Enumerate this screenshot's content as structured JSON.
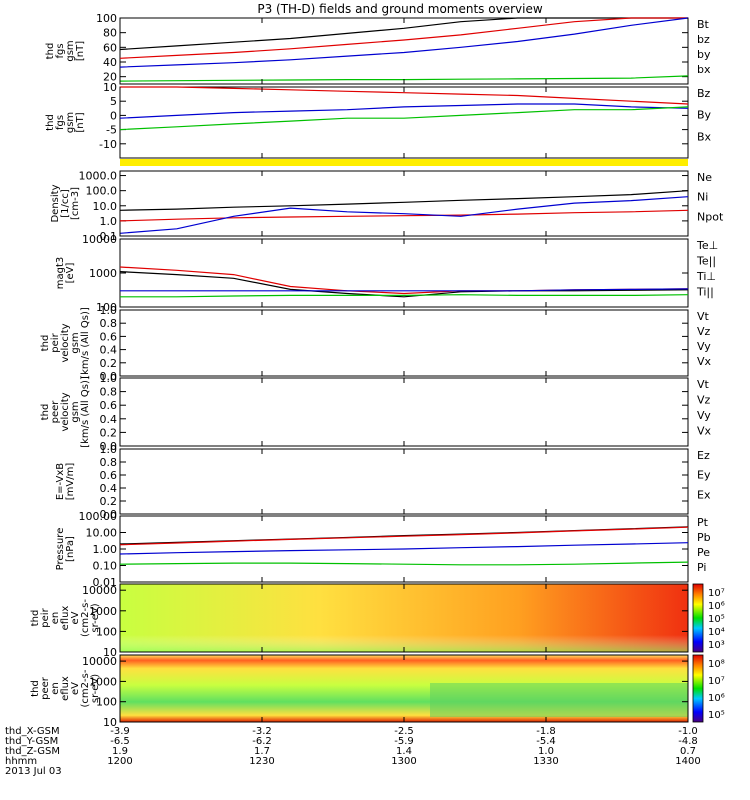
{
  "title": "P3 (TH-D) fields and ground moments overview",
  "footer": {
    "rows": [
      {
        "label": "thd_X-GSM",
        "values": [
          "-3.9",
          "-3.2",
          "-2.5",
          "-1.8",
          "-1.0"
        ]
      },
      {
        "label": "thd_Y-GSM",
        "values": [
          "-6.5",
          "-6.2",
          "-5.9",
          "-5.4",
          "-4.8"
        ]
      },
      {
        "label": "thd_Z-GSM",
        "values": [
          "1.9",
          "1.7",
          "1.4",
          "1.0",
          "0.7"
        ]
      },
      {
        "label": "hhmm",
        "values": [
          "1200",
          "1230",
          "1300",
          "1330",
          "1400"
        ]
      }
    ],
    "date": "2013 Jul 03"
  },
  "colors": {
    "black": "#000000",
    "red": "#e00000",
    "green": "#00c000",
    "blue": "#0000d0",
    "yellow": "#ffee00"
  },
  "chart_data": [
    {
      "type": "line",
      "ylabel": [
        "thd",
        "fgs",
        "gsm",
        "[nT]"
      ],
      "ylim": [
        10,
        100
      ],
      "yticks": [
        "20",
        "40",
        "60",
        "80",
        "100"
      ],
      "legend": [
        "Bt",
        "bz",
        "by",
        "bx"
      ],
      "series": [
        {
          "name": "Bt",
          "color": "black",
          "values": [
            57,
            62,
            67,
            72,
            79,
            86,
            95,
            100,
            100,
            100,
            100
          ]
        },
        {
          "name": "bz",
          "color": "red",
          "values": [
            45,
            49,
            53,
            58,
            64,
            70,
            77,
            86,
            95,
            100,
            100
          ]
        },
        {
          "name": "by",
          "color": "green",
          "values": [
            14,
            14.5,
            15,
            15.5,
            16,
            16,
            16.5,
            17,
            17.5,
            18,
            21
          ]
        },
        {
          "name": "bx",
          "color": "blue",
          "values": [
            33,
            36,
            39,
            43,
            48,
            53,
            60,
            68,
            78,
            90,
            100
          ]
        }
      ]
    },
    {
      "type": "line",
      "ylabel": [
        "thd",
        "fgs",
        "gsm",
        "[nT]"
      ],
      "ylim": [
        -15,
        10
      ],
      "yticks": [
        "-10",
        "-5",
        "0",
        "5",
        "10"
      ],
      "legend": [
        "Bz",
        "By",
        "Bx"
      ],
      "series": [
        {
          "name": "Bz",
          "color": "red",
          "values": [
            10,
            10,
            9.5,
            9,
            8.5,
            8,
            7.5,
            7,
            6,
            5,
            4
          ]
        },
        {
          "name": "By",
          "color": "blue",
          "values": [
            -1,
            0,
            1,
            1.5,
            2,
            3,
            3.5,
            4,
            4,
            3,
            2.5
          ]
        },
        {
          "name": "Bx",
          "color": "green",
          "values": [
            -5,
            -4,
            -3,
            -2,
            -1,
            -1,
            0,
            1,
            2,
            2,
            3
          ]
        }
      ]
    },
    {
      "type": "line",
      "ylabel": [
        "Density",
        "[1/cc]",
        "[cm-3]"
      ],
      "ylim": [
        0.1,
        2000
      ],
      "log": true,
      "yticks": [
        "0.1",
        "1.0",
        "10.0",
        "100.0",
        "1000.0"
      ],
      "legend": [
        "Ne",
        "Ni",
        "Npot"
      ],
      "series": [
        {
          "name": "Ni",
          "color": "black",
          "values": [
            5,
            6,
            8,
            10,
            13,
            17,
            23,
            30,
            40,
            55,
            100
          ]
        },
        {
          "name": "Ne",
          "color": "red",
          "values": [
            1,
            1.3,
            1.6,
            1.8,
            2,
            2.2,
            2.4,
            2.8,
            3.5,
            4,
            5
          ]
        },
        {
          "name": "Npot",
          "color": "blue",
          "values": [
            0.15,
            0.3,
            2,
            7,
            4,
            3,
            2,
            6,
            15,
            22,
            40
          ]
        }
      ]
    },
    {
      "type": "line",
      "ylabel": [
        "magt3",
        "[eV]"
      ],
      "ylim": [
        100,
        10000
      ],
      "log": true,
      "yticks": [
        "100",
        "1000",
        "10000"
      ],
      "legend": [
        "Te⊥",
        "Te||",
        "Ti⊥",
        "Ti||"
      ],
      "series": [
        {
          "name": "Te⊥",
          "color": "red",
          "values": [
            1500,
            1200,
            900,
            400,
            300,
            250,
            300,
            300,
            320,
            330,
            340
          ]
        },
        {
          "name": "Te||",
          "color": "black",
          "values": [
            1100,
            900,
            700,
            330,
            250,
            200,
            280,
            300,
            300,
            310,
            320
          ]
        },
        {
          "name": "Ti⊥",
          "color": "blue",
          "values": [
            300,
            300,
            300,
            300,
            300,
            300,
            300,
            300,
            320,
            330,
            340
          ]
        },
        {
          "name": "Ti||",
          "color": "green",
          "values": [
            200,
            200,
            210,
            220,
            220,
            220,
            230,
            220,
            220,
            220,
            230
          ]
        }
      ]
    },
    {
      "type": "line",
      "ylabel": [
        "thd",
        "peir",
        "velocity",
        "gsm",
        "[km/s (All Qs)]"
      ],
      "ylim": [
        0,
        1
      ],
      "yticks": [
        "0.0",
        "0.2",
        "0.4",
        "0.6",
        "0.8",
        "1.0"
      ],
      "legend": [
        "Vt",
        "Vz",
        "Vy",
        "Vx"
      ],
      "series": []
    },
    {
      "type": "line",
      "ylabel": [
        "thd",
        "peer",
        "velocity",
        "gsm",
        "[km/s (All Qs)]"
      ],
      "ylim": [
        0,
        1
      ],
      "yticks": [
        "0.0",
        "0.2",
        "0.4",
        "0.6",
        "0.8",
        "1.0"
      ],
      "legend": [
        "Vt",
        "Vz",
        "Vy",
        "Vx"
      ],
      "series": []
    },
    {
      "type": "line",
      "ylabel": [
        "E=-VxB",
        "[mV/m]"
      ],
      "ylim": [
        0,
        1
      ],
      "yticks": [
        "0.0",
        "0.2",
        "0.4",
        "0.6",
        "0.8",
        "1.0"
      ],
      "legend": [
        "Ez",
        "Ey",
        "Ex"
      ],
      "series": []
    },
    {
      "type": "line",
      "ylabel": [
        "Pressure",
        "[nPa]"
      ],
      "ylim": [
        0.01,
        100
      ],
      "log": true,
      "yticks": [
        "0.01",
        "0.10",
        "1.00",
        "10.00",
        "100.00"
      ],
      "legend": [
        "Pt",
        "Pb",
        "Pe",
        "Pi"
      ],
      "series": [
        {
          "name": "Pt",
          "color": "black",
          "values": [
            2,
            2.5,
            3.2,
            4,
            5,
            6.5,
            8,
            10,
            13,
            17,
            22
          ]
        },
        {
          "name": "Pb",
          "color": "red",
          "values": [
            1.8,
            2.3,
            3,
            3.8,
            4.8,
            6,
            7.5,
            9.5,
            12.5,
            16,
            21
          ]
        },
        {
          "name": "Pi",
          "color": "blue",
          "values": [
            0.5,
            0.6,
            0.7,
            0.8,
            0.9,
            1,
            1.2,
            1.4,
            1.7,
            2,
            2.4
          ]
        },
        {
          "name": "Pe",
          "color": "green",
          "values": [
            0.12,
            0.13,
            0.14,
            0.14,
            0.13,
            0.12,
            0.11,
            0.11,
            0.12,
            0.14,
            0.16
          ]
        }
      ]
    },
    {
      "type": "heatmap",
      "ylabel": [
        "thd",
        "peir",
        "en",
        "eflux",
        "eV",
        "(cm2-s-",
        "sr-eV)"
      ],
      "ylim": [
        10,
        20000
      ],
      "log": true,
      "yticks": [
        "10",
        "100",
        "1000",
        "10000"
      ],
      "colorbar": [
        "10³",
        "10⁴",
        "10⁵",
        "10⁶",
        "10⁷"
      ]
    },
    {
      "type": "heatmap",
      "ylabel": [
        "thd",
        "peer",
        "en",
        "eflux",
        "eV",
        "(cm2-s-",
        "sr-eV)"
      ],
      "ylim": [
        10,
        20000
      ],
      "log": true,
      "yticks": [
        "10",
        "100",
        "1000",
        "10000"
      ],
      "colorbar": [
        "10⁵",
        "10⁶",
        "10⁷",
        "10⁸"
      ]
    }
  ]
}
